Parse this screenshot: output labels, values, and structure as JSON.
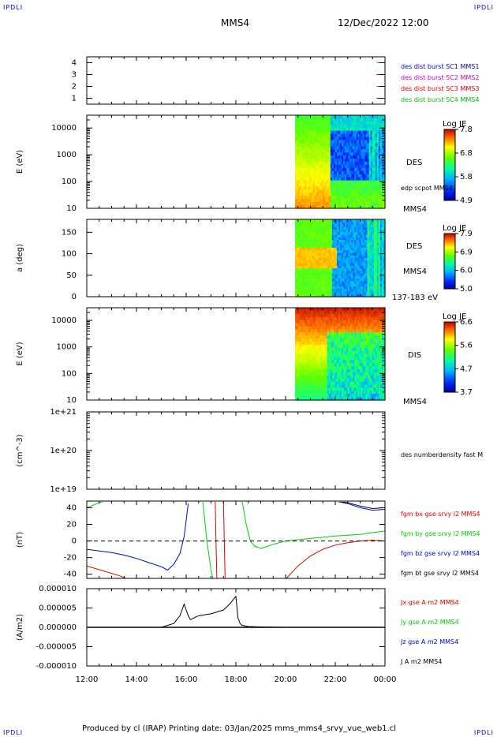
{
  "header": {
    "corner_tl": "IPDLI",
    "corner_tr": "IPDLI",
    "spacecraft": "MMS4",
    "datetime": "12/Dec/2022 12:00",
    "corner_bl": "IPDLI",
    "corner_br": "IPDLI"
  },
  "footer": {
    "text": "Produced by cl (IRAP)   Printing date: 03/Jan/2025   mms_mms4_srvy_vue_web1.cl"
  },
  "colors": {
    "bx": "#dd0000",
    "by": "#00cc00",
    "bz": "#0000cc",
    "bt": "#000000",
    "burst_sc1": "#0000cc",
    "burst_sc2": "#cc00cc",
    "burst_sc3": "#dd0000",
    "burst_sc4": "#00bb00"
  },
  "chart_data": [
    {
      "type": "line",
      "panel": "burst",
      "yticks": [
        "1",
        "2",
        "3",
        "4"
      ],
      "ylim": [
        0.5,
        4.5
      ],
      "legend": [
        "des dist burst SC1 MMS1",
        "des dist burst SC2 MMS2",
        "des dist burst SC3 MMS3",
        "des dist burst SC4 MMS4"
      ],
      "series": [
        {
          "name": "des dist burst SC4 MMS4",
          "y": 4,
          "x_range": [
            "23:40",
            "23:54"
          ]
        },
        {
          "name": "des dist burst SC3 MMS3",
          "y": 3,
          "x_range": [
            "23:40",
            "23:54"
          ]
        },
        {
          "name": "des dist burst SC2 MMS2",
          "y": 2,
          "x_range": [
            "23:40",
            "23:54"
          ]
        },
        {
          "name": "des dist burst SC1 MMS1",
          "y": 1,
          "x_range": [
            "23:40",
            "23:54"
          ]
        }
      ]
    },
    {
      "type": "heatmap",
      "panel": "des_energy",
      "ylabel": "E (eV)",
      "yscale": "log",
      "ylim": [
        10,
        30000
      ],
      "yticks": [
        "10",
        "100",
        "1000",
        "10000"
      ],
      "data_start": "20:23",
      "labels": [
        "DES",
        "edp scpot MMS4",
        "MMS4"
      ],
      "colorbar": {
        "title": "Log JE",
        "ticks": [
          "7.8",
          "6.8",
          "5.8",
          "4.9"
        ],
        "range": [
          4.9,
          7.8
        ]
      }
    },
    {
      "type": "heatmap",
      "panel": "des_pitch",
      "ylabel": "a (deg)",
      "ylim": [
        0,
        180
      ],
      "yticks": [
        "0",
        "50",
        "100",
        "150"
      ],
      "data_start": "20:23",
      "labels": [
        "DES",
        "MMS4",
        "137-183 eV"
      ],
      "colorbar": {
        "title": "Log JE",
        "ticks": [
          "7.9",
          "6.9",
          "6.0",
          "5.0"
        ],
        "range": [
          5.0,
          7.9
        ]
      }
    },
    {
      "type": "heatmap",
      "panel": "dis_energy",
      "ylabel": "E (eV)",
      "yscale": "log",
      "ylim": [
        10,
        30000
      ],
      "yticks": [
        "10",
        "100",
        "1000",
        "10000"
      ],
      "data_start": "20:23",
      "labels": [
        "DIS",
        "MMS4"
      ],
      "colorbar": {
        "title": "Log JE",
        "ticks": [
          "6.6",
          "5.6",
          "4.7",
          "3.7"
        ],
        "range": [
          3.7,
          6.6
        ]
      }
    },
    {
      "type": "line",
      "panel": "density",
      "ylabel": "(cm^-3)",
      "yscale": "log",
      "ylim": [
        1e+19,
        1e+21
      ],
      "yticks": [
        "1e+19",
        "1e+20",
        "1e+21"
      ],
      "legend": [
        "des numberdensity fast M"
      ],
      "series": []
    },
    {
      "type": "line",
      "panel": "fgm",
      "ylabel": "(nT)",
      "ylim": [
        -45,
        48
      ],
      "yticks": [
        "-40",
        "-20",
        "0",
        "20",
        "40"
      ],
      "legend": [
        "fgm bx gse srvy l2 MMS4",
        "fgm by gse srvy l2 MMS4",
        "fgm bz gse srvy l2 MMS4",
        "fgm bt gse srvy l2 MMS4"
      ],
      "series": [
        {
          "name": "fgm bz gse srvy l2 MMS4",
          "x": [
            "12:00",
            "12:30",
            "13:00",
            "13:30",
            "14:00",
            "14:30",
            "15:00",
            "15:15",
            "15:30",
            "15:45",
            "15:55",
            "16:00",
            "16:05"
          ],
          "y": [
            -10,
            -12,
            -14,
            -17,
            -21,
            -26,
            -31,
            -35,
            -28,
            -15,
            5,
            25,
            45
          ]
        },
        {
          "name": "fgm bx gse srvy l2 MMS4",
          "x": [
            "12:00",
            "12:20",
            "12:40",
            "13:00",
            "13:20",
            "13:40"
          ],
          "y": [
            -30,
            -33,
            -36,
            -39,
            -42,
            -46
          ]
        },
        {
          "name": "fgm by gse srvy l2 MMS4",
          "x": [
            "12:00",
            "12:15",
            "12:30",
            "12:45"
          ],
          "y": [
            40,
            43,
            46,
            48
          ]
        },
        {
          "name": "fgm by gse srvy l2 MMS4",
          "x": [
            "16:40",
            "16:50",
            "17:00",
            "17:05"
          ],
          "y": [
            48,
            0,
            -35,
            -46
          ]
        },
        {
          "name": "fgm bx gse srvy l2 MMS4",
          "x": [
            "17:10",
            "17:12",
            "17:14"
          ],
          "y": [
            48,
            0,
            -46
          ]
        },
        {
          "name": "fgm bx gse srvy l2 MMS4",
          "x": [
            "17:30",
            "17:32",
            "17:34"
          ],
          "y": [
            48,
            0,
            -46
          ]
        },
        {
          "name": "fgm by gse srvy l2 MMS4",
          "x": [
            "18:15",
            "18:25",
            "18:35",
            "18:45",
            "19:00",
            "19:30",
            "20:00",
            "21:00",
            "22:00",
            "23:00",
            "23:30",
            "24:00"
          ],
          "y": [
            48,
            20,
            0,
            -6,
            -9,
            -4,
            0,
            3,
            6,
            8,
            10,
            12
          ]
        },
        {
          "name": "fgm bx gse srvy l2 MMS4",
          "x": [
            "20:00",
            "20:30",
            "21:00",
            "21:30",
            "22:00",
            "22:30",
            "23:00",
            "23:30",
            "24:00"
          ],
          "y": [
            -46,
            -30,
            -18,
            -10,
            -5,
            -2,
            0,
            1,
            0
          ]
        },
        {
          "name": "fgm bz gse srvy l2 MMS4",
          "x": [
            "22:00",
            "22:30",
            "23:00",
            "23:30",
            "24:00"
          ],
          "y": [
            48,
            45,
            40,
            37,
            38
          ]
        },
        {
          "name": "fgm bt gse srvy l2 MMS4",
          "x": [
            "22:00",
            "22:30",
            "23:00",
            "23:30",
            "24:00"
          ],
          "y": [
            48,
            46,
            42,
            39,
            40
          ]
        }
      ]
    },
    {
      "type": "line",
      "panel": "current",
      "ylabel": "(A/m2)",
      "ylim": [
        -1e-05,
        1e-05
      ],
      "yticks": [
        "-0.000010",
        "-0.000005",
        "0.000000",
        "0.000005",
        "0.000010"
      ],
      "legend": [
        "Jx gse A m2 MMS4",
        "Jy gse A m2 MMS4",
        "Jz gse A m2 MMS4",
        "J A m2 MMS4"
      ],
      "series": [
        {
          "name": "J A m2 MMS4",
          "x": [
            "12:00",
            "15:00",
            "15:30",
            "15:45",
            "15:55",
            "16:00",
            "16:05",
            "16:10",
            "16:30",
            "17:00",
            "17:30",
            "17:45",
            "18:00",
            "18:05",
            "18:10",
            "18:15",
            "18:30",
            "19:00",
            "20:00",
            "24:00"
          ],
          "y": [
            0,
            0,
            1e-06,
            3e-06,
            6e-06,
            4.5e-06,
            3e-06,
            2e-06,
            3e-06,
            3.5e-06,
            4.5e-06,
            6e-06,
            8e-06,
            2.5e-06,
            1e-06,
            5e-07,
            2e-07,
            1e-07,
            0,
            0
          ]
        }
      ]
    }
  ],
  "xaxis": {
    "ticks": [
      "12:00",
      "14:00",
      "16:00",
      "18:00",
      "20:00",
      "22:00",
      "00:00"
    ]
  }
}
